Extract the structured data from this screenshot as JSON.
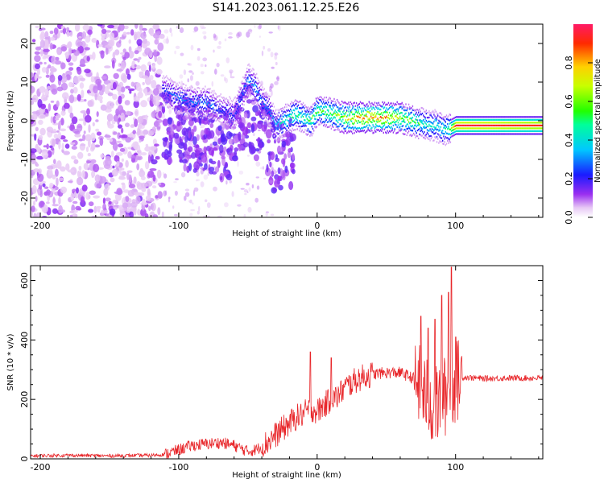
{
  "figure_title": "S141.2023.061.12.25.E26",
  "chart_data": [
    {
      "type": "heatmap",
      "title": "",
      "xlabel": "Height of straight line (km)",
      "ylabel": "Frequency (Hz)",
      "xlim": [
        -207,
        163
      ],
      "ylim": [
        -25,
        25
      ],
      "xticks": [
        -200,
        -100,
        0,
        100
      ],
      "yticks": [
        -20,
        -10,
        0,
        10,
        20
      ],
      "colorbar": {
        "label": "Normalized spectral amplitude",
        "range": [
          0.0,
          1.0
        ],
        "ticks": [
          0.0,
          0.2,
          0.4,
          0.6,
          0.8
        ],
        "colormap": "rainbow (magenta-blue-cyan-green-yellow-red)"
      },
      "ridge": {
        "x": [
          -110,
          -100,
          -90,
          -80,
          -70,
          -60,
          -50,
          -45,
          -40,
          -35,
          -30,
          -25,
          -20,
          -15,
          -10,
          -5,
          0,
          10,
          20,
          30,
          40,
          50,
          60,
          70,
          80,
          85,
          90,
          95,
          100,
          120,
          140,
          163
        ],
        "y": [
          8,
          6,
          5,
          5,
          3,
          2,
          11,
          9,
          5,
          3,
          -1,
          0,
          1,
          2,
          1,
          0,
          3,
          2,
          1,
          1,
          1,
          1,
          1,
          0,
          -1,
          -1,
          -2,
          -2,
          -1,
          -1,
          -1,
          -1
        ],
        "amplitude": [
          0.25,
          0.3,
          0.3,
          0.3,
          0.25,
          0.25,
          0.3,
          0.35,
          0.3,
          0.3,
          0.35,
          0.45,
          0.5,
          0.5,
          0.5,
          0.55,
          0.55,
          0.6,
          0.7,
          0.85,
          0.9,
          0.85,
          0.7,
          0.55,
          0.45,
          0.45,
          0.45,
          0.5,
          0.95,
          0.95,
          0.92,
          0.9
        ]
      }
    },
    {
      "type": "line",
      "title": "",
      "xlabel": "Height of straight line (km)",
      "ylabel": "SNR (10 * v/v)",
      "xlim": [
        -207,
        163
      ],
      "ylim": [
        0,
        650
      ],
      "xticks": [
        -200,
        -100,
        0,
        100
      ],
      "yticks": [
        0,
        200,
        400,
        600
      ],
      "color": "#e8262a",
      "series": [
        {
          "x": [
            -207,
            -180,
            -150,
            -120,
            -110,
            -100,
            -90,
            -80,
            -70,
            -60,
            -50,
            -45,
            -40,
            -35,
            -30,
            -25,
            -20,
            -15,
            -10,
            -5,
            0,
            5,
            10,
            15,
            20,
            30,
            40,
            50,
            60,
            65,
            70,
            75,
            80,
            85,
            90,
            95,
            100,
            105,
            120,
            140,
            163
          ],
          "y": [
            10,
            12,
            10,
            12,
            15,
            30,
            45,
            50,
            55,
            45,
            25,
            30,
            40,
            60,
            80,
            100,
            120,
            140,
            150,
            170,
            160,
            180,
            200,
            210,
            240,
            270,
            285,
            290,
            290,
            280,
            270,
            240,
            200,
            170,
            200,
            220,
            260,
            275,
            270,
            272,
            272
          ],
          "spikes": [
            {
              "x": -5,
              "y": 360
            },
            {
              "x": 10,
              "y": 340
            },
            {
              "x": 75,
              "y": 480
            },
            {
              "x": 80,
              "y": 440
            },
            {
              "x": 85,
              "y": 470
            },
            {
              "x": 90,
              "y": 550
            },
            {
              "x": 95,
              "y": 560
            },
            {
              "x": 97,
              "y": 645
            },
            {
              "x": 100,
              "y": 410
            }
          ]
        }
      ]
    }
  ]
}
